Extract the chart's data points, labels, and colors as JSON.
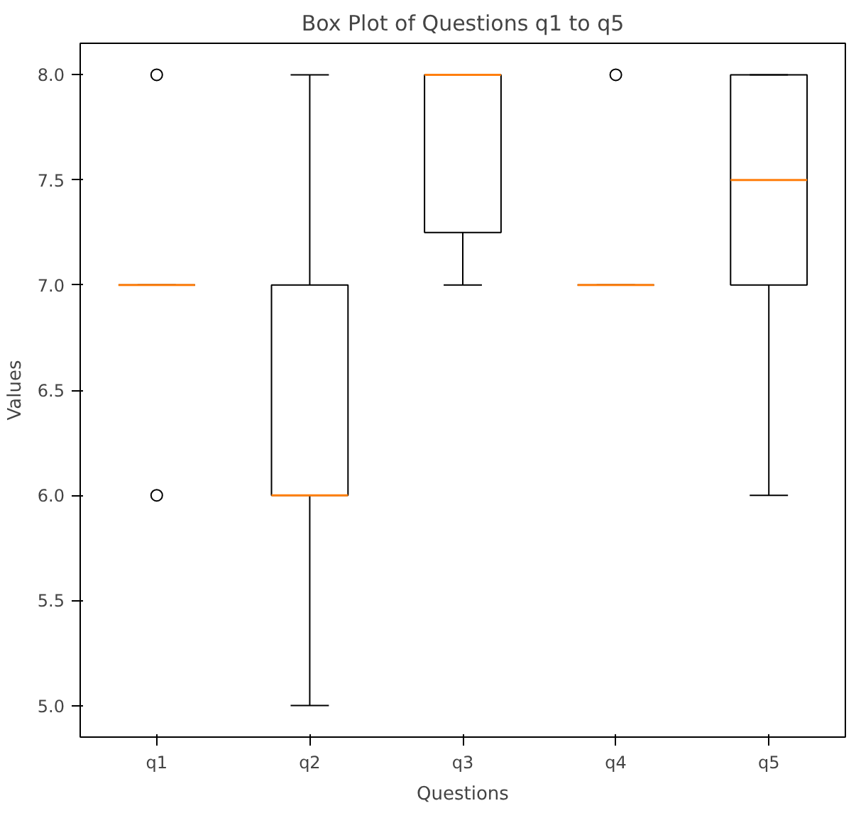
{
  "chart_data": {
    "type": "box",
    "title": "Box Plot of Questions q1 to q5",
    "xlabel": "Questions",
    "ylabel": "Values",
    "categories": [
      "q1",
      "q2",
      "q3",
      "q4",
      "q5"
    ],
    "series": [
      {
        "color": "#000000",
        "boxes": [
          {
            "low": 7,
            "q1": 7,
            "median": 7,
            "q3": 7,
            "high": 7,
            "outliers": [
              8,
              6
            ]
          },
          {
            "low": 5,
            "q1": 6,
            "median": 6,
            "q3": 7,
            "high": 8
          },
          {
            "low": 7,
            "q1": 7.25,
            "median": 8,
            "q3": 8,
            "high": 8
          },
          {
            "low": 7,
            "q1": 7,
            "median": 7,
            "q3": 7,
            "high": 7,
            "outliers": [
              8
            ]
          },
          {
            "low": 6,
            "q1": 7,
            "median": 7.5,
            "q3": 8,
            "high": 8
          }
        ]
      }
    ],
    "ylim": [
      4.85,
      8.15
    ],
    "yticks": [
      {
        "value": 5,
        "label": "5.0"
      },
      {
        "value": 5.5,
        "label": "5.5"
      },
      {
        "value": 6,
        "label": "6.0"
      },
      {
        "value": 6.5,
        "label": "6.5"
      },
      {
        "value": 7,
        "label": "7.0"
      },
      {
        "value": 7.5,
        "label": "7.5"
      },
      {
        "value": 8,
        "label": "8.0"
      }
    ],
    "grid": false
  }
}
